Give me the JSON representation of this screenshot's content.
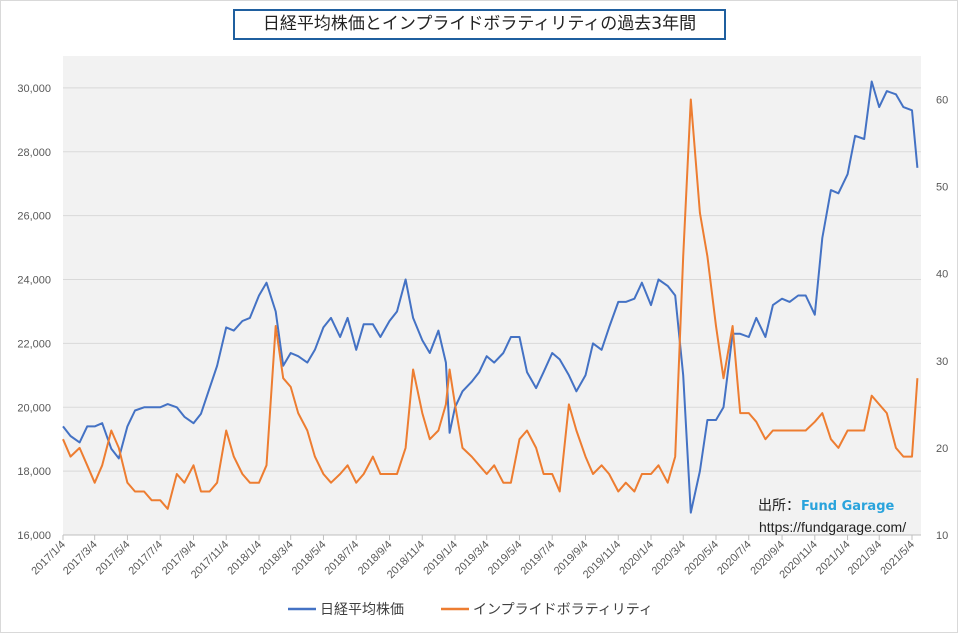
{
  "chart_data": {
    "type": "line",
    "title": "日経平均株価とインプライドボラティリティの過去3年間",
    "grid": true,
    "legend_placement": "bottom",
    "y_left": {
      "ylim": [
        16000,
        31000
      ],
      "ticks": [
        "16,000",
        "18,000",
        "20,000",
        "22,000",
        "24,000",
        "26,000",
        "28,000",
        "30,000"
      ]
    },
    "y_right": {
      "ylim": [
        10,
        65
      ],
      "ticks": [
        "10",
        "20",
        "30",
        "40",
        "50",
        "60"
      ]
    },
    "x_ticks": [
      "2017/1/4",
      "2017/3/4",
      "2017/5/4",
      "2017/7/4",
      "2017/9/4",
      "2017/11/4",
      "2018/1/4",
      "2018/3/4",
      "2018/5/4",
      "2018/7/4",
      "2018/9/4",
      "2018/11/4",
      "2019/1/4",
      "2019/3/4",
      "2019/5/4",
      "2019/7/4",
      "2019/9/4",
      "2019/11/4",
      "2020/1/4",
      "2020/3/4",
      "2020/5/4",
      "2020/7/4",
      "2020/9/4",
      "2020/11/4",
      "2021/1/4",
      "2021/3/4",
      "2021/5/4"
    ],
    "x": [
      "2017-01-04",
      "2017-01-18",
      "2017-02-04",
      "2017-02-18",
      "2017-03-04",
      "2017-03-18",
      "2017-04-04",
      "2017-04-18",
      "2017-05-04",
      "2017-05-18",
      "2017-06-04",
      "2017-06-18",
      "2017-07-04",
      "2017-07-18",
      "2017-08-04",
      "2017-08-18",
      "2017-09-04",
      "2017-09-18",
      "2017-10-04",
      "2017-10-18",
      "2017-11-04",
      "2017-11-18",
      "2017-12-04",
      "2017-12-18",
      "2018-01-04",
      "2018-01-18",
      "2018-02-04",
      "2018-02-18",
      "2018-03-04",
      "2018-03-18",
      "2018-04-04",
      "2018-04-18",
      "2018-05-04",
      "2018-05-18",
      "2018-06-04",
      "2018-06-18",
      "2018-07-04",
      "2018-07-18",
      "2018-08-04",
      "2018-08-18",
      "2018-09-04",
      "2018-09-18",
      "2018-10-04",
      "2018-10-18",
      "2018-11-04",
      "2018-11-18",
      "2018-12-04",
      "2018-12-18",
      "2018-12-25",
      "2019-01-04",
      "2019-01-18",
      "2019-02-04",
      "2019-02-18",
      "2019-03-04",
      "2019-03-18",
      "2019-04-04",
      "2019-04-18",
      "2019-05-04",
      "2019-05-18",
      "2019-06-04",
      "2019-06-18",
      "2019-07-04",
      "2019-07-18",
      "2019-08-04",
      "2019-08-18",
      "2019-09-04",
      "2019-09-18",
      "2019-10-04",
      "2019-10-18",
      "2019-11-04",
      "2019-11-18",
      "2019-12-04",
      "2019-12-18",
      "2020-01-04",
      "2020-01-18",
      "2020-02-04",
      "2020-02-18",
      "2020-03-04",
      "2020-03-18",
      "2020-04-04",
      "2020-04-18",
      "2020-05-04",
      "2020-05-18",
      "2020-06-04",
      "2020-06-18",
      "2020-07-04",
      "2020-07-18",
      "2020-08-04",
      "2020-08-18",
      "2020-09-04",
      "2020-09-18",
      "2020-10-04",
      "2020-10-18",
      "2020-11-04",
      "2020-11-18",
      "2020-12-04",
      "2020-12-18",
      "2021-01-04",
      "2021-01-18",
      "2021-02-04",
      "2021-02-18",
      "2021-03-04",
      "2021-03-18",
      "2021-04-04",
      "2021-04-18",
      "2021-05-04",
      "2021-05-14"
    ],
    "series": [
      {
        "name": "日経平均株価",
        "axis": "left",
        "color": "#4472c4",
        "values": [
          19400,
          19100,
          18900,
          19400,
          19400,
          19500,
          18700,
          18400,
          19400,
          19900,
          20000,
          20000,
          20000,
          20100,
          20000,
          19700,
          19500,
          19800,
          20600,
          21300,
          22500,
          22400,
          22700,
          22800,
          23500,
          23900,
          23000,
          21300,
          21700,
          21600,
          21400,
          21800,
          22500,
          22800,
          22200,
          22800,
          21800,
          22600,
          22600,
          22200,
          22700,
          23000,
          24000,
          22800,
          22100,
          21700,
          22400,
          21400,
          19200,
          20000,
          20500,
          20800,
          21100,
          21600,
          21400,
          21700,
          22200,
          22200,
          21100,
          20600,
          21100,
          21700,
          21500,
          21000,
          20500,
          21000,
          22000,
          21800,
          22500,
          23300,
          23300,
          23400,
          23900,
          23200,
          24000,
          23800,
          23500,
          21000,
          16700,
          18000,
          19600,
          19600,
          20000,
          22300,
          22300,
          22200,
          22800,
          22200,
          23200,
          23400,
          23300,
          23500,
          23500,
          22900,
          25300,
          26800,
          26700,
          27300,
          28500,
          28400,
          30200,
          29400,
          29900,
          29800,
          29400,
          29300,
          27500
        ]
      },
      {
        "name": "インプライドボラティリティ",
        "axis": "right",
        "color": "#ed7d31",
        "values": [
          21,
          19,
          20,
          18,
          16,
          18,
          22,
          20,
          16,
          15,
          15,
          14,
          14,
          13,
          17,
          16,
          18,
          15,
          15,
          16,
          22,
          19,
          17,
          16,
          16,
          18,
          34,
          28,
          27,
          24,
          22,
          19,
          17,
          16,
          17,
          18,
          16,
          17,
          19,
          17,
          17,
          17,
          20,
          29,
          24,
          21,
          22,
          25,
          29,
          25,
          20,
          19,
          18,
          17,
          18,
          16,
          16,
          21,
          22,
          20,
          17,
          17,
          15,
          25,
          22,
          19,
          17,
          18,
          17,
          15,
          16,
          15,
          17,
          17,
          18,
          16,
          19,
          42,
          60,
          47,
          42,
          34,
          28,
          34,
          24,
          24,
          23,
          21,
          22,
          22,
          22,
          22,
          22,
          23,
          24,
          21,
          20,
          22,
          22,
          22,
          26,
          25,
          24,
          20,
          19,
          19,
          28
        ]
      }
    ]
  },
  "source": {
    "label": "出所：",
    "name": "Fund Garage",
    "url": "https://fundgarage.com/"
  }
}
